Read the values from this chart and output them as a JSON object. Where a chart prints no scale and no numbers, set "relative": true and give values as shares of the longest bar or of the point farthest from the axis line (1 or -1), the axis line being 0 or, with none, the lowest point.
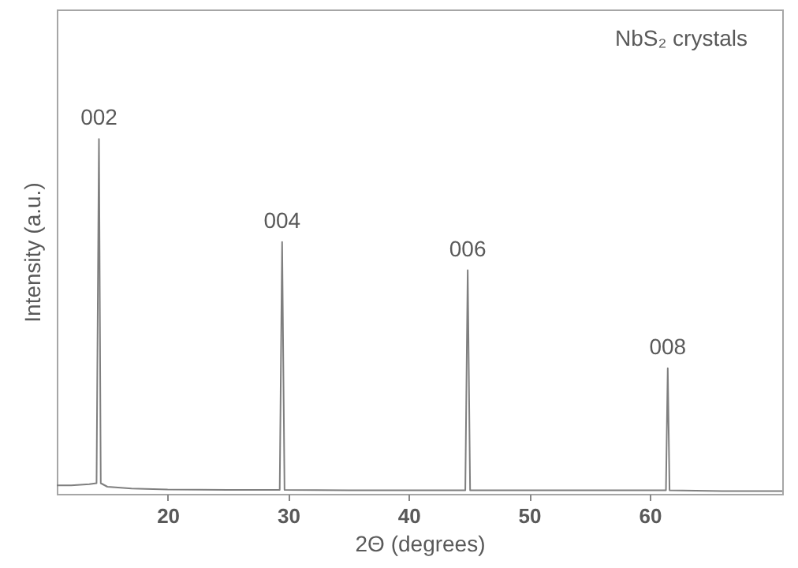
{
  "chart_data": {
    "type": "line",
    "relative": true,
    "xlabel": "2Θ (degrees)",
    "ylabel": "Intensity (a.u.)",
    "xlim": [
      10.8,
      71
    ],
    "xticks": [
      20,
      30,
      40,
      50,
      60
    ],
    "grid": false,
    "marker": "none",
    "line_style": "solid",
    "annotations": [
      "NbS₂ crystals",
      {
        "text": "002",
        "x": 14.3,
        "y": 1
      },
      {
        "text": "004",
        "x": 29.5,
        "y": 0.71
      },
      {
        "text": "006",
        "x": 44.9,
        "y": 0.63
      },
      {
        "text": "008",
        "x": 61.5,
        "y": 0.354
      }
    ],
    "series": [
      {
        "color": "#7f7f7f",
        "x": [
          10.8,
          12,
          13.5,
          14.1,
          14.3,
          14.45,
          15,
          17,
          20,
          25,
          29.3,
          29.5,
          29.7,
          35,
          40,
          44.7,
          44.9,
          45.1,
          50,
          55,
          61.35,
          61.5,
          61.65,
          66,
          71
        ],
        "values": [
          0.024,
          0.024,
          0.027,
          0.03,
          1,
          0.03,
          0.02,
          0.015,
          0.012,
          0.011,
          0.011,
          0.71,
          0.011,
          0.01,
          0.01,
          0.01,
          0.63,
          0.01,
          0.01,
          0.01,
          0.01,
          0.354,
          0.01,
          0.008,
          0.008
        ]
      }
    ]
  }
}
